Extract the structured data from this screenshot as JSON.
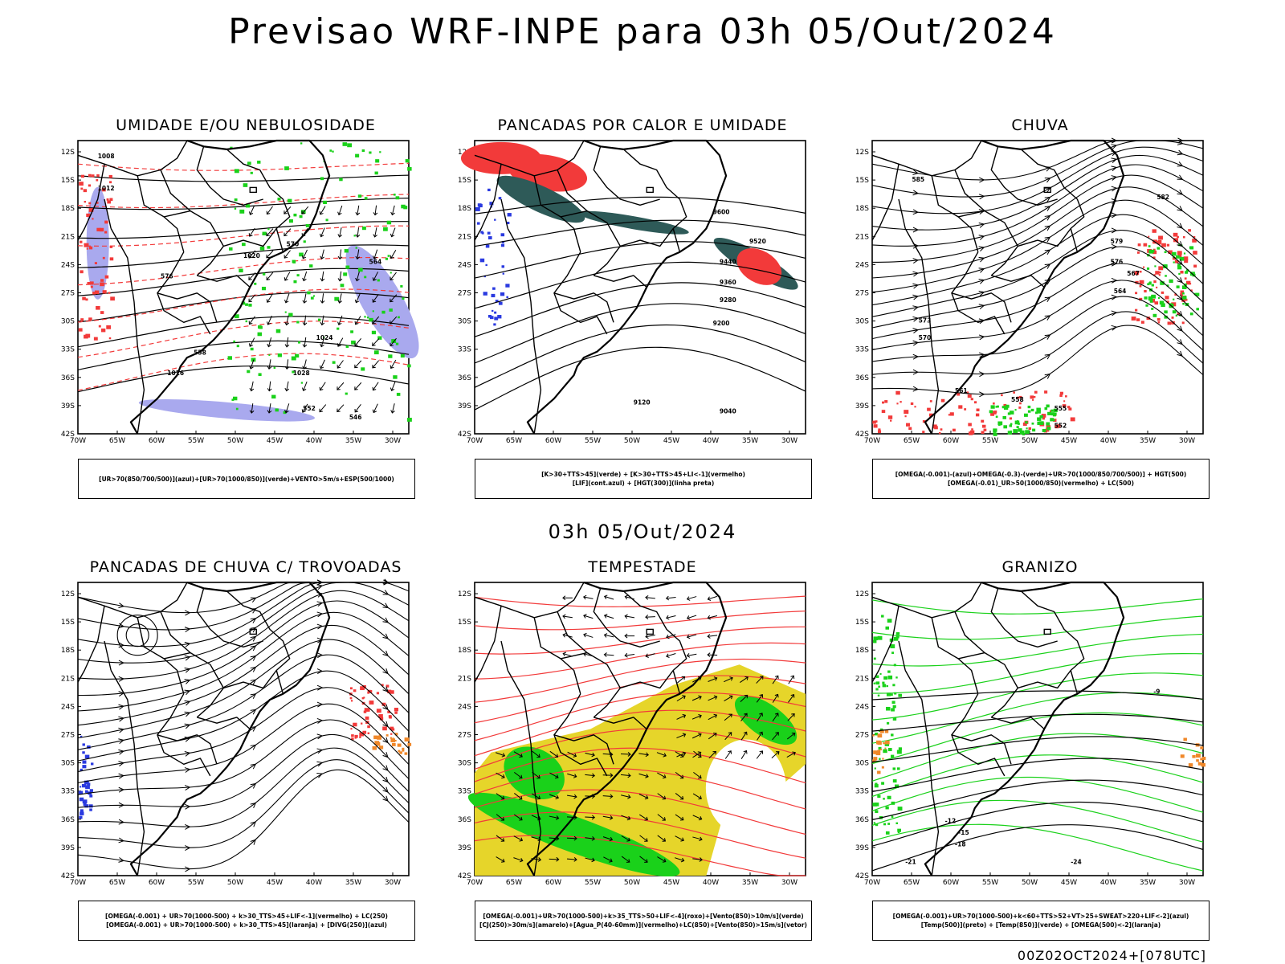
{
  "title": "Previsao WRF-INPE  para 03h 05/Out/2024",
  "mid_date": "03h 05/Out/2024",
  "run_info": "00Z02OCT2024+[078UTC]",
  "axes": {
    "lat_labels": [
      "12S",
      "15S",
      "18S",
      "21S",
      "24S",
      "27S",
      "30S",
      "33S",
      "36S",
      "39S",
      "42S"
    ],
    "lon_labels": [
      "70W",
      "65W",
      "60W",
      "55W",
      "50W",
      "45W",
      "40W",
      "35W",
      "30W"
    ]
  },
  "colors": {
    "red": "#f23a3a",
    "green": "#1ad11a",
    "blue": "#2a3ae0",
    "lavender": "#a9a9ee",
    "darkteal": "#2e5a58",
    "yellow": "#e6d52a",
    "orange": "#f0882a",
    "black": "#000000"
  },
  "panels": [
    {
      "id": "umidade",
      "title": "UMIDADE E/OU NEBULOSIDADE",
      "legend": [
        "[UR>70(850/700/500)](azul)+[UR>70(1000/850)](verde)+VENTO>5m/s+ESP(500/1000)"
      ],
      "labels": [
        "1008",
        "1012",
        "1016",
        "1020",
        "1024",
        "1028",
        "546",
        "552",
        "558",
        "564",
        "570",
        "576"
      ]
    },
    {
      "id": "pancadas-calor",
      "title": "PANCADAS POR CALOR E UMIDADE",
      "legend": [
        "[K>30+TTS>45](verde) + [K>30+TTS>45+LI<-1](vermelho)",
        "[LIF](cont.azul) + [HGT(300)](linha preta)"
      ],
      "labels": [
        "9600",
        "9520",
        "9440",
        "9360",
        "9280",
        "9200",
        "9120",
        "9040"
      ]
    },
    {
      "id": "chuva",
      "title": "CHUVA",
      "legend": [
        "[OMEGA(-0.001)-(azul)+OMEGA(-0.3)-(verde)+UR>70(1000/850/700/500)] + HGT(500)",
        "[OMEGA(-0.01)_UR>50(1000/850)(vermelho) + LC(500)"
      ],
      "labels": [
        "585",
        "582",
        "579",
        "576",
        "573",
        "570",
        "567",
        "564",
        "561",
        "558",
        "555",
        "552"
      ]
    },
    {
      "id": "trovoadas",
      "title": "PANCADAS DE CHUVA C/ TROVOADAS",
      "legend": [
        "[OMEGA(-0.001) + UR>70(1000-500) + k>30_TTS>45+LIF<-1](vermelho) + LC(250)",
        "[OMEGA(-0.001) + UR>70(1000-500) + k>30_TTS>45](laranja) + [DIVG(250)](azul)"
      ],
      "labels": []
    },
    {
      "id": "tempestade",
      "title": "TEMPESTADE",
      "legend": [
        "[OMEGA(-0.001)+UR>70(1000-500)+k>35_TTS>50+LIF<-4](roxo)+[Vento(850)>10m/s](verde)",
        "[CJ(250)>30m/s](amarelo)+[Agua_P(40-60mm)](vermelho)+LC(850)+[Vento(850)>15m/s](vetor)"
      ],
      "labels": []
    },
    {
      "id": "granizo",
      "title": "GRANIZO",
      "legend": [
        "[OMEGA(-0.001)+UR>70(1000-500)+k<60+TTS>52+VT>25+SWEAT>220+LIF<-2](azul)",
        "[Temp(500)](preto) + [Temp(850)](verde) + [OMEGA(500)<-2](laranja)"
      ],
      "labels": [
        "-12",
        "-15",
        "-18",
        "-21",
        "-24",
        "-9"
      ]
    }
  ]
}
